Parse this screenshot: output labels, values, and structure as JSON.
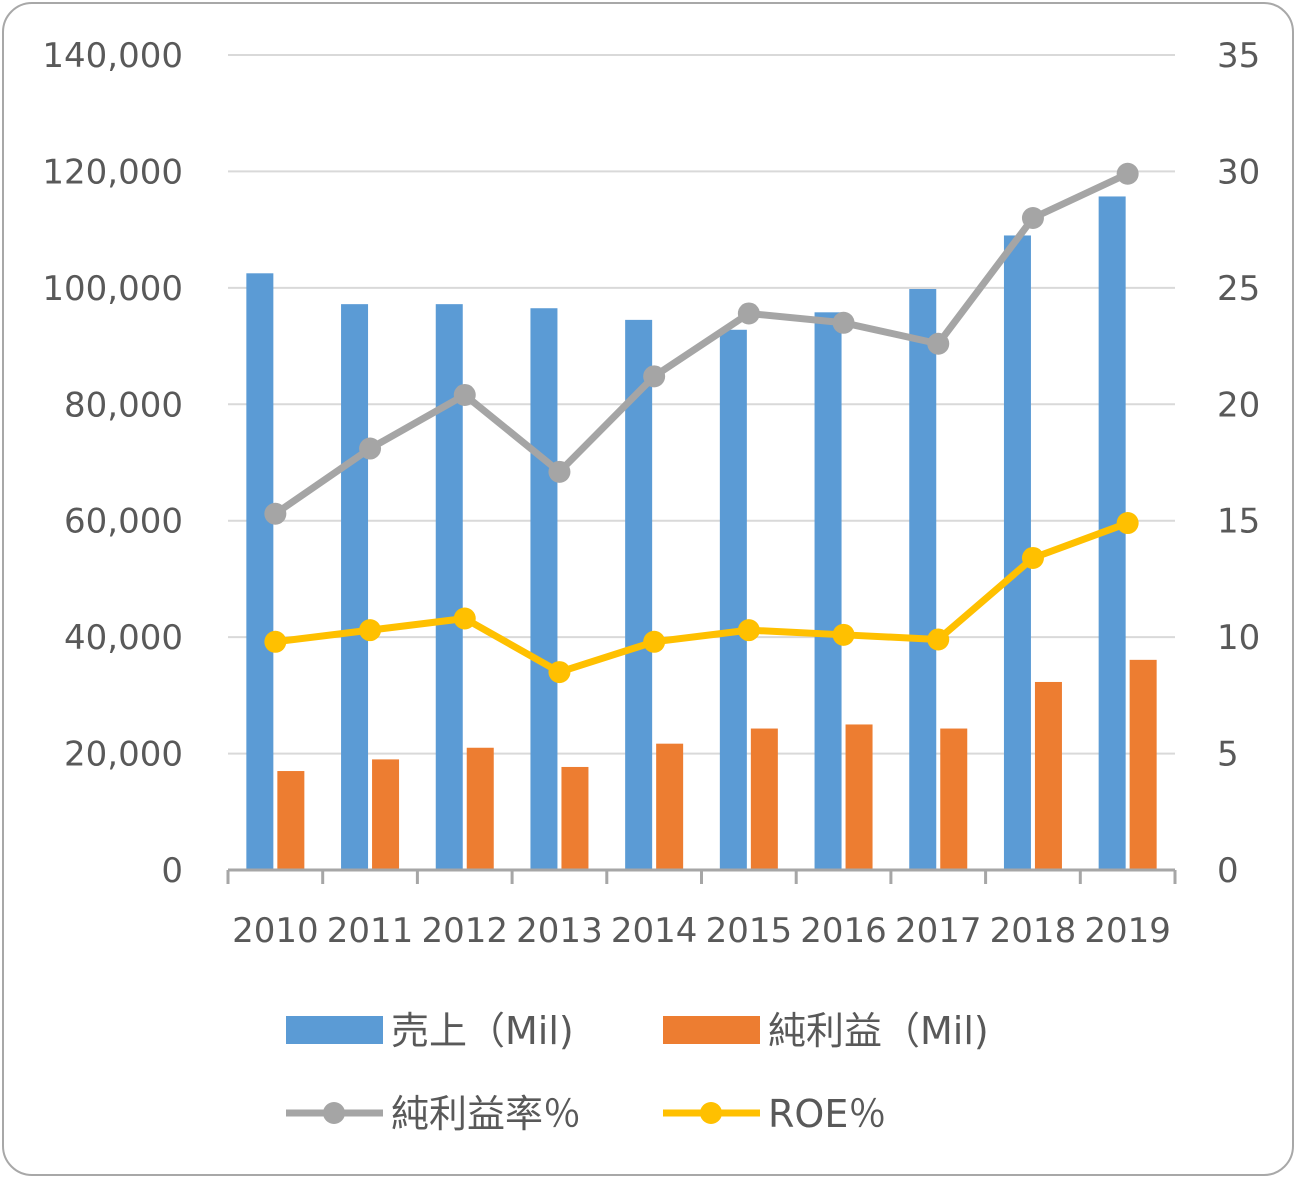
{
  "chart_data": {
    "type": "bar",
    "categories": [
      "2010",
      "2011",
      "2012",
      "2013",
      "2014",
      "2015",
      "2016",
      "2017",
      "2018",
      "2019"
    ],
    "series": [
      {
        "name": "売上（Mil)",
        "type": "bar",
        "axis": "left",
        "color": "#5b9bd5",
        "values": [
          102500,
          97200,
          97200,
          96500,
          94500,
          92800,
          95800,
          99800,
          109000,
          115700
        ]
      },
      {
        "name": "純利益（Mil)",
        "type": "bar",
        "axis": "left",
        "color": "#ed7d31",
        "values": [
          17000,
          19000,
          21000,
          17700,
          21700,
          24300,
          25000,
          24300,
          32300,
          36100
        ]
      },
      {
        "name": "純利益率％",
        "type": "line",
        "axis": "right",
        "color": "#a5a5a5",
        "values": [
          15.3,
          18.1,
          20.4,
          17.1,
          21.2,
          23.9,
          23.5,
          22.6,
          28.0,
          29.9
        ]
      },
      {
        "name": "ROE％",
        "type": "line",
        "axis": "right",
        "color": "#ffc000",
        "values": [
          9.8,
          10.3,
          10.8,
          8.5,
          9.8,
          10.3,
          10.1,
          9.9,
          13.4,
          14.9
        ]
      }
    ],
    "y_left": {
      "min": 0,
      "max": 140000,
      "ticks": [
        "0",
        "20,000",
        "40,000",
        "60,000",
        "80,000",
        "100,000",
        "120,000",
        "140,000"
      ]
    },
    "y_right": {
      "min": 0,
      "max": 35,
      "ticks": [
        "0",
        "5",
        "10",
        "15",
        "20",
        "25",
        "30",
        "35"
      ]
    },
    "grid": true,
    "legend_position": "bottom"
  }
}
